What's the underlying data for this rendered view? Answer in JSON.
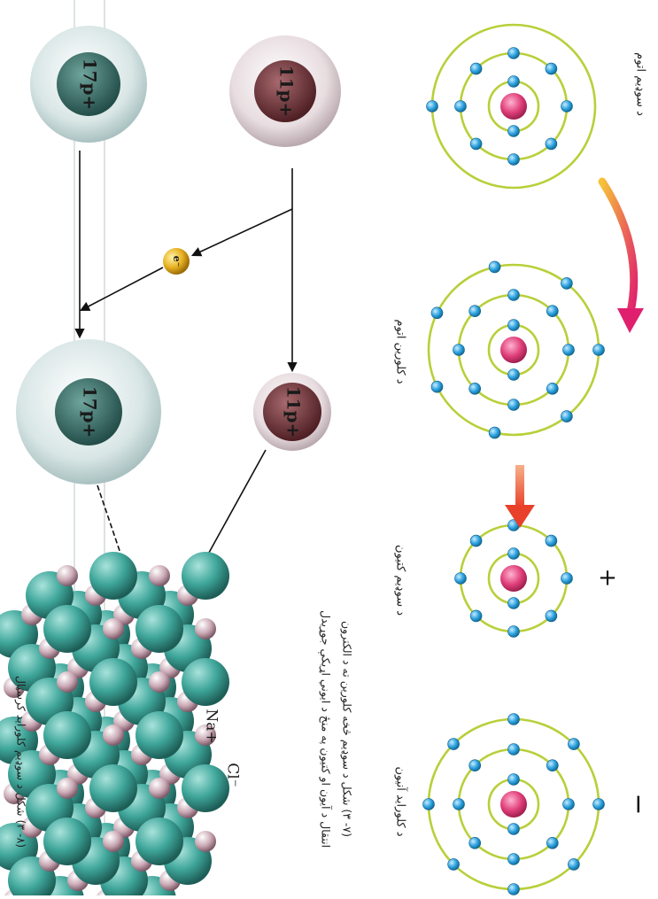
{
  "atom_labels": {
    "sodium_atom": "د سوډیم اتوم",
    "chlorine_atom": "د کلورین اتوم",
    "sodium_cation": "د سوډیم کتیون",
    "chloride_anion": "د کلوراید آنیون"
  },
  "charges": {
    "plus": "+",
    "minus": "−"
  },
  "nucleus_label": "p",
  "ion_labels": {
    "na_nucleus": "11p+",
    "cl_nucleus": "17p+",
    "electron": "e⁻",
    "na_plus": "Na+",
    "cl_minus": "Cl⁻"
  },
  "captions": {
    "fig_7_line1": "(۷- ۳) شکل د سوډیم څخه کلورین ته د الکترون",
    "fig_7_line2": "انتقال د آیون او کتیون په منځ د ایوني اړیکې جوړیدل",
    "fig_8": "(۸- ۳) شکل د سوډیم کلوراید کرسټال"
  },
  "colors": {
    "shell": "#b9cf3a",
    "electron": "#2ea3e0",
    "nucleus": "#e0407a",
    "na_sphere": "#7a3b3f",
    "cl_sphere": "#3f7f78",
    "crystal_cl": "#3fa69a",
    "crystal_na": "#c9a8b4"
  }
}
